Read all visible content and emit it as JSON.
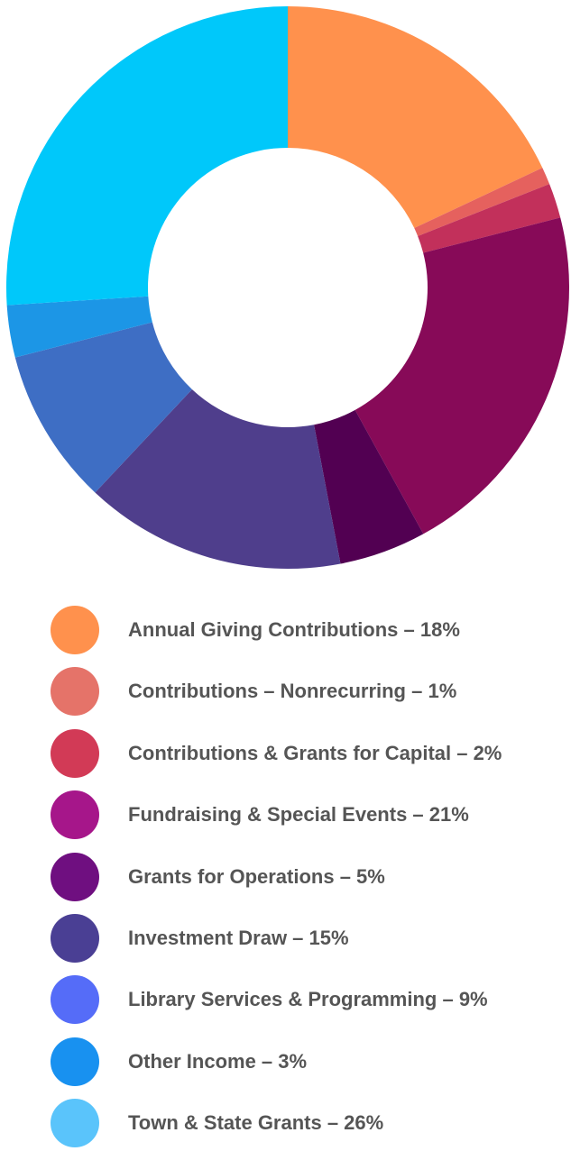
{
  "chart_data": {
    "type": "pie",
    "donut": true,
    "grid": false,
    "legend_placement": "bottom",
    "slices": [
      {
        "label": "Annual Giving Contributions – 18%",
        "value": 18,
        "color": "#FF914D",
        "legend_color": "#FF914D"
      },
      {
        "label": "Contributions – Nonrecurring – 1%",
        "value": 1,
        "color": "#E5615E",
        "legend_color": "#E57369"
      },
      {
        "label": "Contributions & Grants for Capital – 2%",
        "value": 2,
        "color": "#C2305B",
        "legend_color": "#D23A56"
      },
      {
        "label": "Fundraising & Special Events – 21%",
        "value": 21,
        "color": "#870A58",
        "legend_color": "#A6168A"
      },
      {
        "label": "Grants for Operations – 5%",
        "value": 5,
        "color": "#520052",
        "legend_color": "#6F0F80"
      },
      {
        "label": "Investment Draw – 15%",
        "value": 15,
        "color": "#4F3E8C",
        "legend_color": "#4A3F94"
      },
      {
        "label": "Library Services & Programming – 9%",
        "value": 9,
        "color": "#3E6EC4",
        "legend_color": "#556CF8"
      },
      {
        "label": "Other Income – 3%",
        "value": 3,
        "color": "#1C96E6",
        "legend_color": "#1891F0"
      },
      {
        "label": "Town & State Grants – 26%",
        "value": 26,
        "color": "#00C8FA",
        "legend_color": "#5AC4FB"
      }
    ]
  }
}
